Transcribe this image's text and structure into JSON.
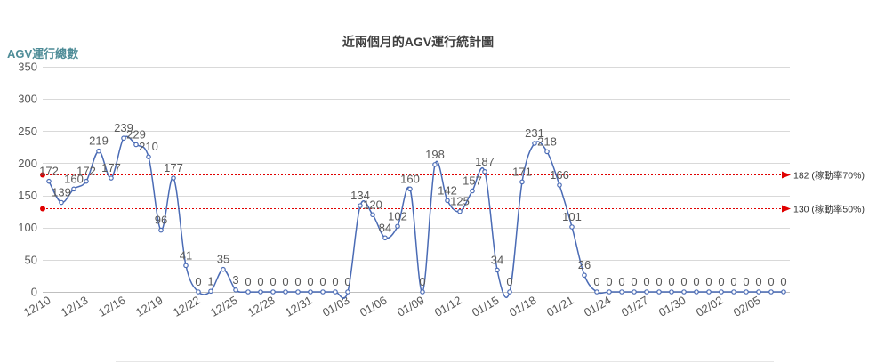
{
  "chart_data": {
    "type": "line",
    "title": "近兩個月的AGV運行統計圖",
    "ylabel": "AGV運行總數",
    "xlabel": "",
    "ylim": [
      0,
      350
    ],
    "yticks": [
      0,
      50,
      100,
      150,
      200,
      250,
      300,
      350
    ],
    "grid": true,
    "x": [
      "12/10",
      "12/11",
      "12/12",
      "12/13",
      "12/14",
      "12/15",
      "12/16",
      "12/17",
      "12/18",
      "12/19",
      "12/20",
      "12/21",
      "12/22",
      "12/23",
      "12/24",
      "12/25",
      "12/26",
      "12/27",
      "12/28",
      "12/29",
      "12/30",
      "12/31",
      "01/01",
      "01/02",
      "01/03",
      "01/04",
      "01/05",
      "01/06",
      "01/07",
      "01/08",
      "01/09",
      "01/10",
      "01/11",
      "01/12",
      "01/13",
      "01/14",
      "01/15",
      "01/16",
      "01/17",
      "01/18",
      "01/19",
      "01/20",
      "01/21",
      "01/22",
      "01/23",
      "01/24",
      "01/25",
      "01/26",
      "01/27",
      "01/28",
      "01/29",
      "01/30",
      "01/31",
      "02/01",
      "02/02",
      "02/03",
      "02/04",
      "02/05",
      "02/06",
      "02/07"
    ],
    "xticks": [
      "12/10",
      "12/13",
      "12/16",
      "12/19",
      "12/22",
      "12/25",
      "12/28",
      "12/31",
      "01/03",
      "01/06",
      "01/09",
      "01/12",
      "01/15",
      "01/18",
      "01/21",
      "01/24",
      "01/27",
      "01/30",
      "02/02",
      "02/05"
    ],
    "series": [
      {
        "values": [
          172,
          139,
          160,
          172,
          219,
          177,
          239,
          229,
          210,
          96,
          177,
          41,
          0,
          1,
          35,
          3,
          0,
          0,
          0,
          0,
          0,
          0,
          0,
          0,
          0,
          134,
          120,
          84,
          102,
          160,
          0,
          198,
          142,
          125,
          157,
          187,
          34,
          0,
          171,
          231,
          218,
          166,
          101,
          26,
          0,
          0,
          0,
          0,
          0,
          0,
          0,
          0,
          0,
          0,
          0,
          0,
          0,
          0,
          0,
          0
        ]
      }
    ],
    "reference_lines": [
      {
        "value": 182,
        "label": "182 (稼動率70%)"
      },
      {
        "value": 130,
        "label": "130 (稼動率50%)"
      }
    ],
    "colors": {
      "line": "#4a6bb5",
      "reference": "#e00000",
      "ylabel": "#4e8c97"
    }
  }
}
